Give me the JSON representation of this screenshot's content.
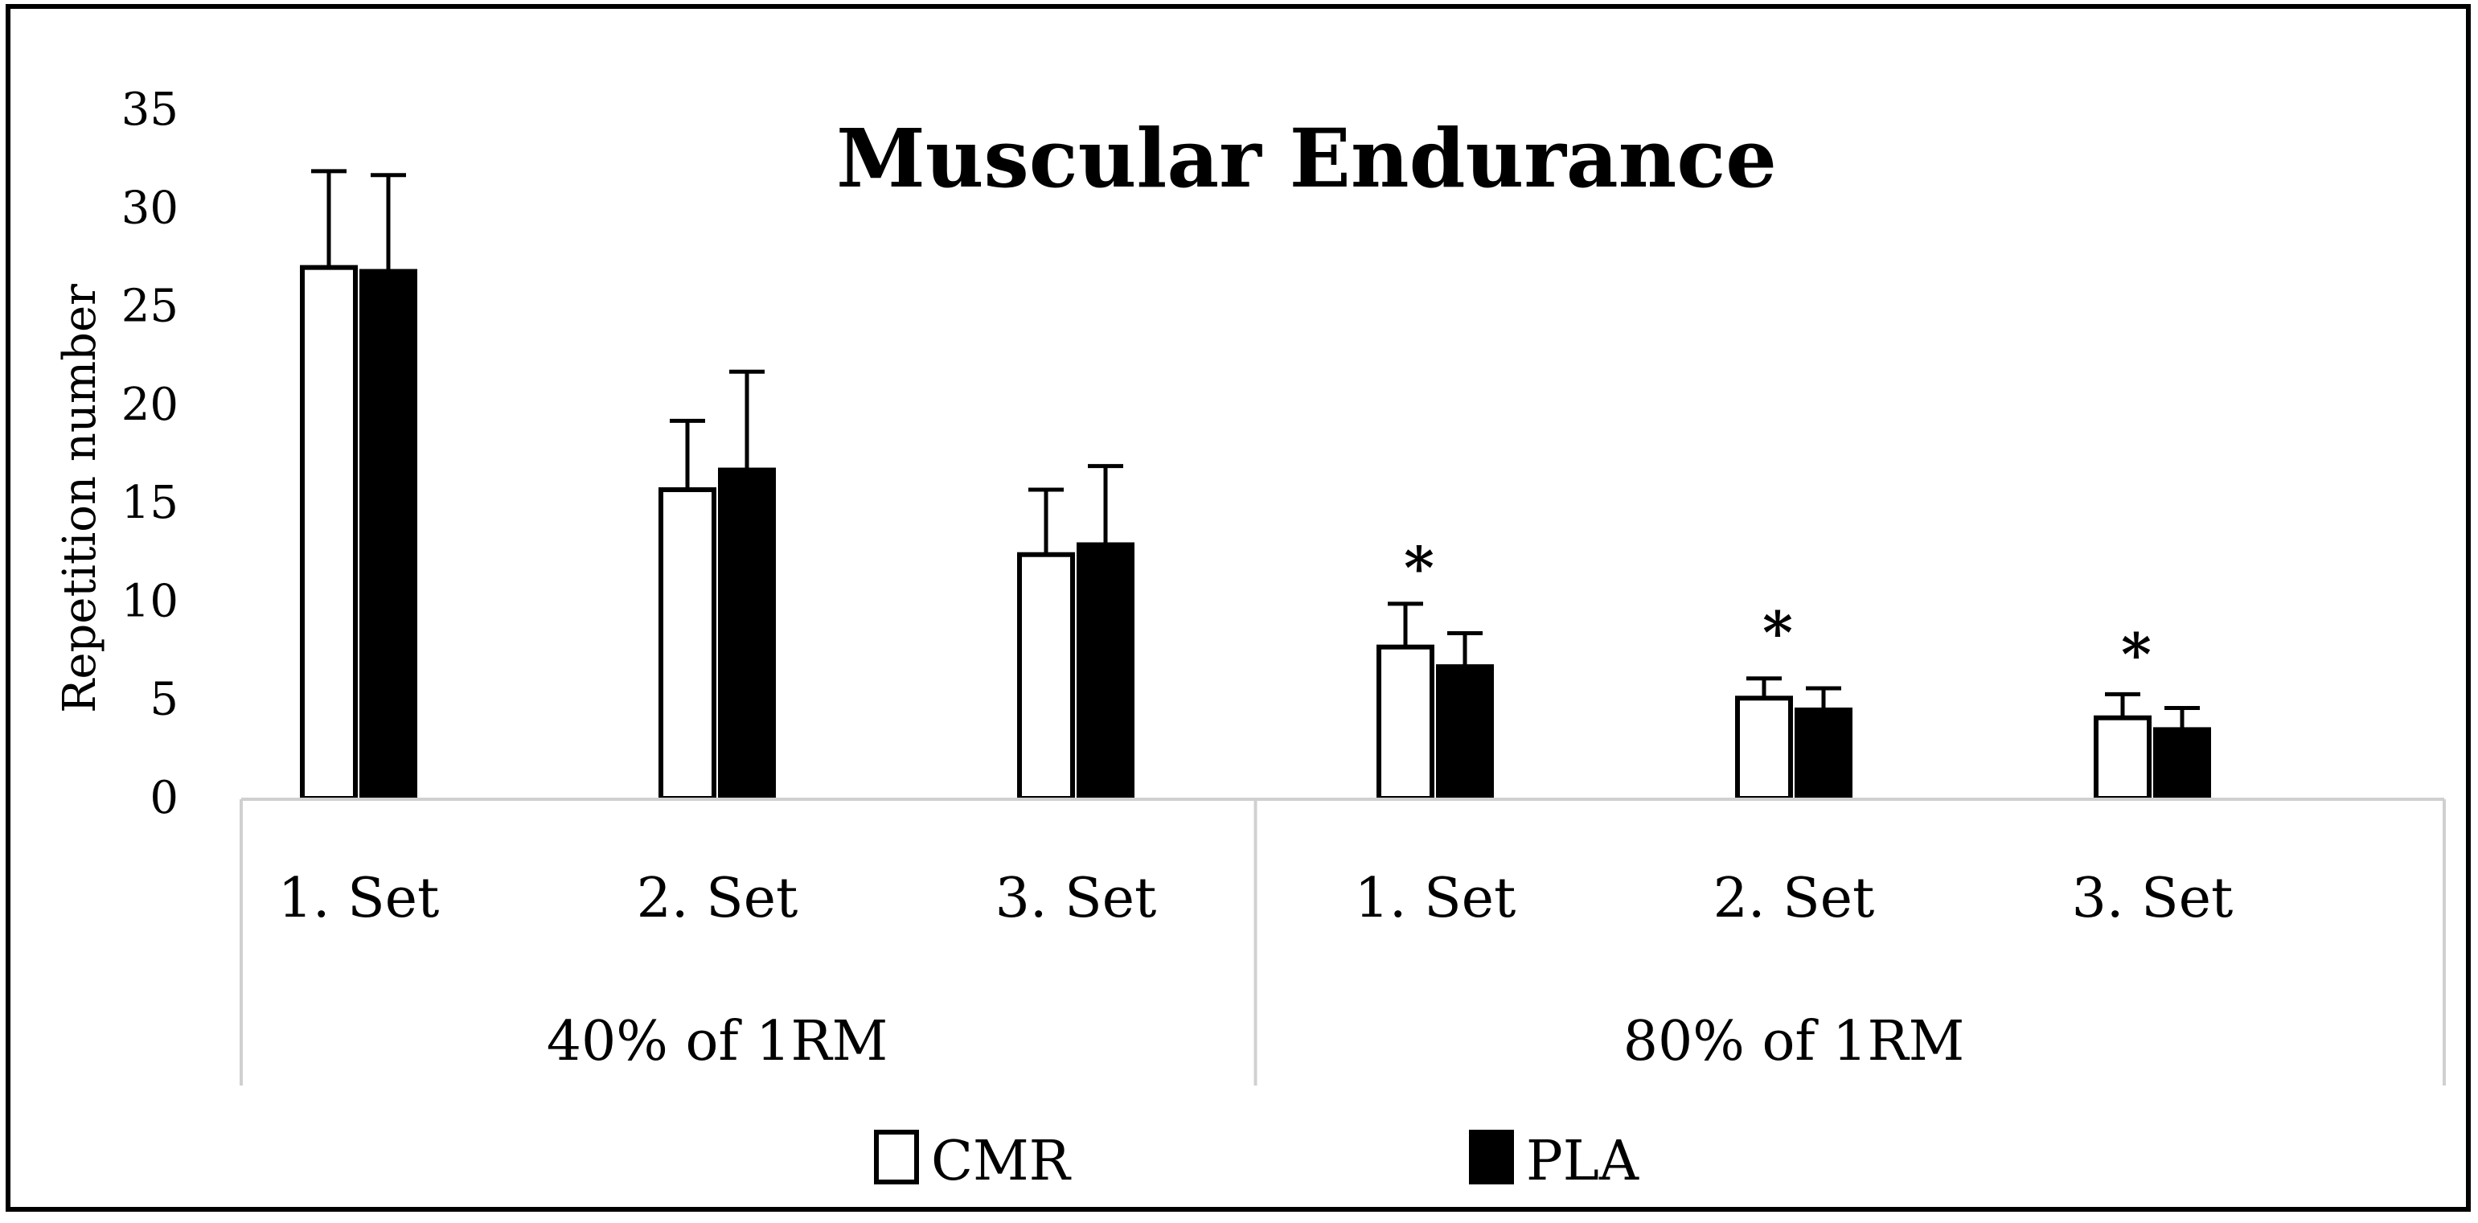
{
  "chart_data": {
    "type": "bar",
    "title": "Muscular Endurance",
    "ylabel": "Repetition number",
    "xlabel": "",
    "ylim": [
      0,
      35
    ],
    "yticks": [
      0,
      5,
      10,
      15,
      20,
      25,
      30,
      35
    ],
    "grid": false,
    "legend_position": "bottom",
    "categories": [
      "1. Set",
      "2. Set",
      "3. Set",
      "1. Set",
      "2. Set",
      "3. Set"
    ],
    "groups": [
      {
        "label": "40% of 1RM",
        "category_indices": [
          0,
          1,
          2
        ]
      },
      {
        "label": "80% of 1RM",
        "category_indices": [
          3,
          4,
          5
        ]
      }
    ],
    "series": [
      {
        "name": "CMR",
        "fill": "#ffffff",
        "stroke": "#000000",
        "values": [
          27.0,
          15.7,
          12.4,
          7.7,
          5.1,
          4.1
        ],
        "errors": [
          4.9,
          3.5,
          3.3,
          2.2,
          1.0,
          1.2
        ]
      },
      {
        "name": "PLA",
        "fill": "#000000",
        "stroke": "#000000",
        "values": [
          26.8,
          16.7,
          12.9,
          6.7,
          4.5,
          3.5
        ],
        "errors": [
          4.9,
          5.0,
          4.0,
          1.7,
          1.1,
          1.1
        ]
      }
    ],
    "annotations": [
      {
        "text": "*",
        "category_index": 3,
        "y": 12.0
      },
      {
        "text": "*",
        "category_index": 4,
        "y": 8.7
      },
      {
        "text": "*",
        "category_index": 5,
        "y": 7.6
      }
    ]
  }
}
